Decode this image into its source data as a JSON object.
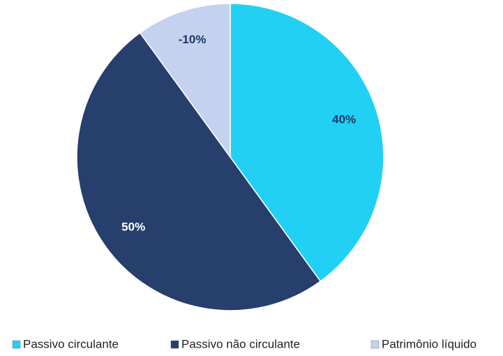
{
  "chart_data": {
    "type": "pie",
    "categories": [
      "Passivo circulante",
      "Passivo não circulante",
      "Patrimônio líquido"
    ],
    "values": [
      40,
      50,
      -10
    ],
    "value_labels": [
      "40%",
      "50%",
      "-10%"
    ],
    "colors": [
      "#22d0f4",
      "#263f6c",
      "#c4d2ef"
    ],
    "legend": "bottom"
  }
}
